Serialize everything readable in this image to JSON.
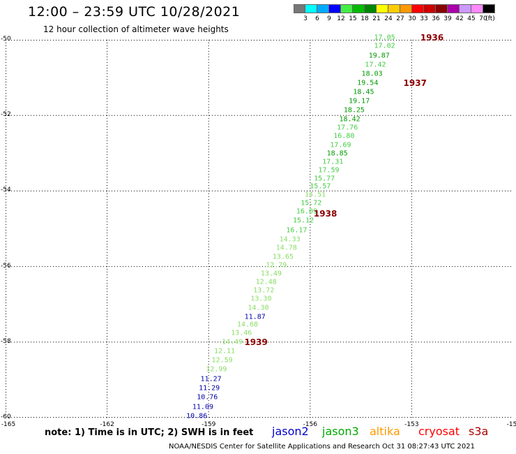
{
  "header": {
    "title": "12:00 – 23:59 UTC 10/28/2021",
    "subtitle": "12 hour collection of altimeter wave heights"
  },
  "legend": {
    "colors": [
      "#777777",
      "#00ffff",
      "#00aaff",
      "#0000ff",
      "#44ee44",
      "#00bb00",
      "#008800",
      "#ffff00",
      "#ffcc00",
      "#ff9900",
      "#ff0000",
      "#cc0000",
      "#880000",
      "#aa00aa",
      "#cc99ff",
      "#ff88ff",
      "#000000"
    ],
    "labels": [
      "3",
      "6",
      "9",
      "12",
      "15",
      "18",
      "21",
      "24",
      "27",
      "30",
      "33",
      "36",
      "39",
      "42",
      "45",
      "70",
      "(ft)"
    ]
  },
  "axes": {
    "x_ticks": [
      "-165",
      "-162",
      "-159",
      "-156",
      "-153",
      "-15"
    ],
    "y_ticks": [
      "-50",
      "-52",
      "-54",
      "-56",
      "-58",
      "-60"
    ]
  },
  "chart_data": {
    "type": "scatter",
    "xlabel": "",
    "ylabel": "",
    "xlim": [
      -165,
      -150
    ],
    "ylim": [
      -60,
      -50
    ],
    "grid": true,
    "points": [
      {
        "lon": -153.8,
        "lat": -49.94,
        "v": "17.05",
        "sat": "jason3",
        "color": "#44cc44"
      },
      {
        "lon": -153.8,
        "lat": -50.17,
        "v": "17.02",
        "sat": "jason3",
        "color": "#44cc44"
      },
      {
        "lon": -153.96,
        "lat": -50.42,
        "v": "19.87",
        "sat": "jason3",
        "color": "#009900"
      },
      {
        "lon": -154.07,
        "lat": -50.66,
        "v": "17.42",
        "sat": "jason3",
        "color": "#44cc44"
      },
      {
        "lon": -154.17,
        "lat": -50.91,
        "v": "18.03",
        "sat": "jason3",
        "color": "#009900"
      },
      {
        "lon": -154.3,
        "lat": -51.15,
        "v": "19.54",
        "sat": "jason3",
        "color": "#009900"
      },
      {
        "lon": -154.42,
        "lat": -51.39,
        "v": "18.45",
        "sat": "jason3",
        "color": "#009900"
      },
      {
        "lon": -154.55,
        "lat": -51.63,
        "v": "19.17",
        "sat": "jason3",
        "color": "#009900"
      },
      {
        "lon": -154.7,
        "lat": -51.86,
        "v": "18.25",
        "sat": "jason3",
        "color": "#009900"
      },
      {
        "lon": -154.83,
        "lat": -52.1,
        "v": "18.42",
        "sat": "jason3",
        "color": "#009900"
      },
      {
        "lon": -154.9,
        "lat": -52.33,
        "v": "17.76",
        "sat": "jason3",
        "color": "#44cc44"
      },
      {
        "lon": -155.0,
        "lat": -52.56,
        "v": "16.80",
        "sat": "jason3",
        "color": "#44cc44"
      },
      {
        "lon": -155.1,
        "lat": -52.79,
        "v": "17.69",
        "sat": "jason3",
        "color": "#44cc44"
      },
      {
        "lon": -155.2,
        "lat": -53.01,
        "v": "18.85",
        "sat": "jason3",
        "color": "#009900"
      },
      {
        "lon": -155.33,
        "lat": -53.23,
        "v": "17.31",
        "sat": "jason3",
        "color": "#44cc44"
      },
      {
        "lon": -155.45,
        "lat": -53.46,
        "v": "17.59",
        "sat": "jason3",
        "color": "#44cc44"
      },
      {
        "lon": -155.58,
        "lat": -53.67,
        "v": "15.77",
        "sat": "jason3",
        "color": "#44cc44"
      },
      {
        "lon": -155.7,
        "lat": -53.88,
        "v": "15.57",
        "sat": "jason3",
        "color": "#44cc44"
      },
      {
        "lon": -155.85,
        "lat": -54.1,
        "v": "14.51",
        "sat": "jason3",
        "color": "#88dd66"
      },
      {
        "lon": -155.97,
        "lat": -54.33,
        "v": "15.72",
        "sat": "jason3",
        "color": "#44cc44"
      },
      {
        "lon": -156.1,
        "lat": -54.55,
        "v": "16.09",
        "sat": "jason3",
        "color": "#44cc44"
      },
      {
        "lon": -156.2,
        "lat": -54.78,
        "v": "15.12",
        "sat": "jason3",
        "color": "#44cc44"
      },
      {
        "lon": -156.4,
        "lat": -55.04,
        "v": "16.17",
        "sat": "jason3",
        "color": "#44cc44"
      },
      {
        "lon": -156.6,
        "lat": -55.28,
        "v": "14.33",
        "sat": "jason3",
        "color": "#88dd66"
      },
      {
        "lon": -156.7,
        "lat": -55.51,
        "v": "14.78",
        "sat": "jason3",
        "color": "#88dd66"
      },
      {
        "lon": -156.8,
        "lat": -55.74,
        "v": "13.65",
        "sat": "jason3",
        "color": "#88dd66"
      },
      {
        "lon": -157.0,
        "lat": -55.97,
        "v": "12.79",
        "sat": "jason3",
        "color": "#88dd66"
      },
      {
        "lon": -157.15,
        "lat": -56.19,
        "v": "13.49",
        "sat": "jason3",
        "color": "#88dd66"
      },
      {
        "lon": -157.3,
        "lat": -56.41,
        "v": "12.48",
        "sat": "jason3",
        "color": "#88dd66"
      },
      {
        "lon": -157.37,
        "lat": -56.63,
        "v": "13.72",
        "sat": "jason3",
        "color": "#88dd66"
      },
      {
        "lon": -157.45,
        "lat": -56.86,
        "v": "13.30",
        "sat": "jason3",
        "color": "#88dd66"
      },
      {
        "lon": -157.53,
        "lat": -57.09,
        "v": "14.30",
        "sat": "jason3",
        "color": "#88dd66"
      },
      {
        "lon": -157.63,
        "lat": -57.33,
        "v": "11.87",
        "sat": "jason3",
        "color": "#0000aa"
      },
      {
        "lon": -157.85,
        "lat": -57.55,
        "v": "14.68",
        "sat": "jason3",
        "color": "#88dd66"
      },
      {
        "lon": -158.03,
        "lat": -57.77,
        "v": "13.46",
        "sat": "jason3",
        "color": "#88dd66"
      },
      {
        "lon": -158.3,
        "lat": -58.0,
        "v": "14.49",
        "sat": "jason3",
        "color": "#88dd66"
      },
      {
        "lon": -158.53,
        "lat": -58.24,
        "v": "12.11",
        "sat": "jason3",
        "color": "#88dd66"
      },
      {
        "lon": -158.6,
        "lat": -58.49,
        "v": "12.59",
        "sat": "jason3",
        "color": "#88dd66"
      },
      {
        "lon": -158.77,
        "lat": -58.73,
        "v": "12.99",
        "sat": "jason3",
        "color": "#88dd66"
      },
      {
        "lon": -158.93,
        "lat": -58.98,
        "v": "11.27",
        "sat": "jason3",
        "color": "#0000aa"
      },
      {
        "lon": -158.98,
        "lat": -59.22,
        "v": "11.29",
        "sat": "jason3",
        "color": "#0000aa"
      },
      {
        "lon": -159.04,
        "lat": -59.47,
        "v": "10.76",
        "sat": "jason3",
        "color": "#0000aa"
      },
      {
        "lon": -159.17,
        "lat": -59.73,
        "v": "11.09",
        "sat": "jason3",
        "color": "#0000aa"
      },
      {
        "lon": -159.35,
        "lat": -59.97,
        "v": "10.86",
        "sat": "jason3",
        "color": "#0000aa"
      }
    ],
    "pass_times": [
      {
        "lon": -152.4,
        "lat": -49.94,
        "label": "1936"
      },
      {
        "lon": -152.9,
        "lat": -51.15,
        "label": "1937"
      },
      {
        "lon": -155.55,
        "lat": -54.6,
        "label": "1938"
      },
      {
        "lon": -157.6,
        "lat": -58.0,
        "label": "1939"
      }
    ]
  },
  "footer": {
    "note": "note: 1) Time is in UTC; 2) SWH is in feet",
    "satellites": [
      {
        "name": "jason2",
        "color": "#0000cc"
      },
      {
        "name": "jason3",
        "color": "#00aa00"
      },
      {
        "name": "altika",
        "color": "#ff9900"
      },
      {
        "name": "cryosat",
        "color": "#ff0000"
      },
      {
        "name": "s3a",
        "color": "#aa0000"
      }
    ],
    "credit": "NOAA/NESDIS Center for Satellite Applications and Research    Oct 31 08:27:43 UTC 2021"
  }
}
